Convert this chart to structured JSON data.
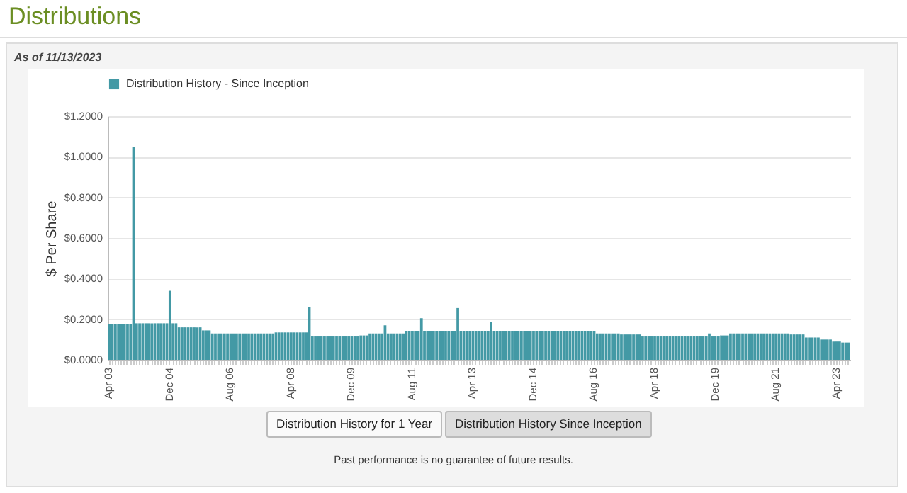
{
  "chart_data": {
    "type": "bar",
    "title": "Distributions",
    "subtitle": "As of 11/13/2023",
    "ylabel": "$ Per Share",
    "annotations": [
      "Distribution History for 1 Year",
      "Distribution History Since Inception",
      "Past performance is no guarantee of future results."
    ],
    "categories": [
      "Apr 03",
      null,
      null,
      null,
      null,
      null,
      null,
      null,
      null,
      null,
      null,
      null,
      null,
      null,
      null,
      null,
      null,
      null,
      null,
      null,
      "Dec 04",
      null,
      null,
      null,
      null,
      null,
      null,
      null,
      null,
      null,
      null,
      null,
      null,
      null,
      null,
      null,
      null,
      null,
      null,
      null,
      "Aug 06",
      null,
      null,
      null,
      null,
      null,
      null,
      null,
      null,
      null,
      null,
      null,
      null,
      null,
      null,
      null,
      null,
      null,
      null,
      null,
      "Apr 08",
      null,
      null,
      null,
      null,
      null,
      null,
      null,
      null,
      null,
      null,
      null,
      null,
      null,
      null,
      null,
      null,
      null,
      null,
      null,
      "Dec 09",
      null,
      null,
      null,
      null,
      null,
      null,
      null,
      null,
      null,
      null,
      null,
      null,
      null,
      null,
      null,
      null,
      null,
      null,
      null,
      "Aug 11",
      null,
      null,
      null,
      null,
      null,
      null,
      null,
      null,
      null,
      null,
      null,
      null,
      null,
      null,
      null,
      null,
      null,
      null,
      null,
      "Apr 13",
      null,
      null,
      null,
      null,
      null,
      null,
      null,
      null,
      null,
      null,
      null,
      null,
      null,
      null,
      null,
      null,
      null,
      null,
      null,
      "Dec 14",
      null,
      null,
      null,
      null,
      null,
      null,
      null,
      null,
      null,
      null,
      null,
      null,
      null,
      null,
      null,
      null,
      null,
      null,
      null,
      "Aug 16",
      null,
      null,
      null,
      null,
      null,
      null,
      null,
      null,
      null,
      null,
      null,
      null,
      null,
      null,
      null,
      null,
      null,
      null,
      null,
      "Apr 18",
      null,
      null,
      null,
      null,
      null,
      null,
      null,
      null,
      null,
      null,
      null,
      null,
      null,
      null,
      null,
      null,
      null,
      null,
      null,
      "Dec 19",
      null,
      null,
      null,
      null,
      null,
      null,
      null,
      null,
      null,
      null,
      null,
      null,
      null,
      null,
      null,
      null,
      null,
      null,
      null,
      "Aug 21",
      null,
      null,
      null,
      null,
      null,
      null,
      null,
      null,
      null,
      null,
      null,
      null,
      null,
      null,
      null,
      null,
      null,
      null,
      null,
      "Apr 23",
      null,
      null,
      null,
      null
    ],
    "series": [
      {
        "name": "Distribution History - Since Inception",
        "color": "#4399a5",
        "values": [
          0.175,
          0.175,
          0.175,
          0.175,
          0.175,
          0.175,
          0.175,
          0.175,
          1.05,
          0.18,
          0.18,
          0.18,
          0.18,
          0.18,
          0.18,
          0.18,
          0.18,
          0.18,
          0.18,
          0.18,
          0.34,
          0.18,
          0.18,
          0.16,
          0.16,
          0.16,
          0.16,
          0.16,
          0.16,
          0.16,
          0.16,
          0.145,
          0.145,
          0.145,
          0.13,
          0.13,
          0.13,
          0.13,
          0.13,
          0.13,
          0.13,
          0.13,
          0.13,
          0.13,
          0.13,
          0.13,
          0.13,
          0.13,
          0.13,
          0.13,
          0.13,
          0.13,
          0.13,
          0.13,
          0.13,
          0.135,
          0.135,
          0.135,
          0.135,
          0.135,
          0.135,
          0.135,
          0.135,
          0.135,
          0.135,
          0.135,
          0.26,
          0.115,
          0.115,
          0.115,
          0.115,
          0.115,
          0.115,
          0.115,
          0.115,
          0.115,
          0.115,
          0.115,
          0.115,
          0.115,
          0.115,
          0.115,
          0.115,
          0.12,
          0.12,
          0.12,
          0.13,
          0.13,
          0.13,
          0.13,
          0.13,
          0.17,
          0.13,
          0.13,
          0.13,
          0.13,
          0.13,
          0.13,
          0.14,
          0.14,
          0.14,
          0.14,
          0.14,
          0.205,
          0.14,
          0.14,
          0.14,
          0.14,
          0.14,
          0.14,
          0.14,
          0.14,
          0.14,
          0.14,
          0.14,
          0.255,
          0.14,
          0.14,
          0.14,
          0.14,
          0.14,
          0.14,
          0.14,
          0.14,
          0.14,
          0.14,
          0.185,
          0.14,
          0.14,
          0.14,
          0.14,
          0.14,
          0.14,
          0.14,
          0.14,
          0.14,
          0.14,
          0.14,
          0.14,
          0.14,
          0.14,
          0.14,
          0.14,
          0.14,
          0.14,
          0.14,
          0.14,
          0.14,
          0.14,
          0.14,
          0.14,
          0.14,
          0.14,
          0.14,
          0.14,
          0.14,
          0.14,
          0.14,
          0.14,
          0.14,
          0.14,
          0.13,
          0.13,
          0.13,
          0.13,
          0.13,
          0.13,
          0.13,
          0.13,
          0.125,
          0.125,
          0.125,
          0.125,
          0.125,
          0.125,
          0.125,
          0.115,
          0.115,
          0.115,
          0.115,
          0.115,
          0.115,
          0.115,
          0.115,
          0.115,
          0.115,
          0.115,
          0.115,
          0.115,
          0.115,
          0.115,
          0.115,
          0.115,
          0.115,
          0.115,
          0.115,
          0.115,
          0.115,
          0.13,
          0.115,
          0.115,
          0.115,
          0.12,
          0.12,
          0.12,
          0.13,
          0.13,
          0.13,
          0.13,
          0.13,
          0.13,
          0.13,
          0.13,
          0.13,
          0.13,
          0.13,
          0.13,
          0.13,
          0.13,
          0.13,
          0.13,
          0.13,
          0.13,
          0.13,
          0.13,
          0.125,
          0.125,
          0.125,
          0.125,
          0.125,
          0.11,
          0.11,
          0.11,
          0.11,
          0.11,
          0.1,
          0.1,
          0.1,
          0.1,
          0.09,
          0.09,
          0.09,
          0.085,
          0.085,
          0.085
        ]
      }
    ],
    "ylim": [
      0,
      1.2
    ],
    "yticks": [
      {
        "value": 0,
        "label": "$0.0000"
      },
      {
        "value": 0.2,
        "label": "$0.2000"
      },
      {
        "value": 0.4,
        "label": "$0.4000"
      },
      {
        "value": 0.6,
        "label": "$0.6000"
      },
      {
        "value": 0.8,
        "label": "$0.8000"
      },
      {
        "value": 1.0,
        "label": "$1.0000"
      },
      {
        "value": 1.2,
        "label": "$1.2000"
      }
    ],
    "grid": "y",
    "legend": "top"
  }
}
